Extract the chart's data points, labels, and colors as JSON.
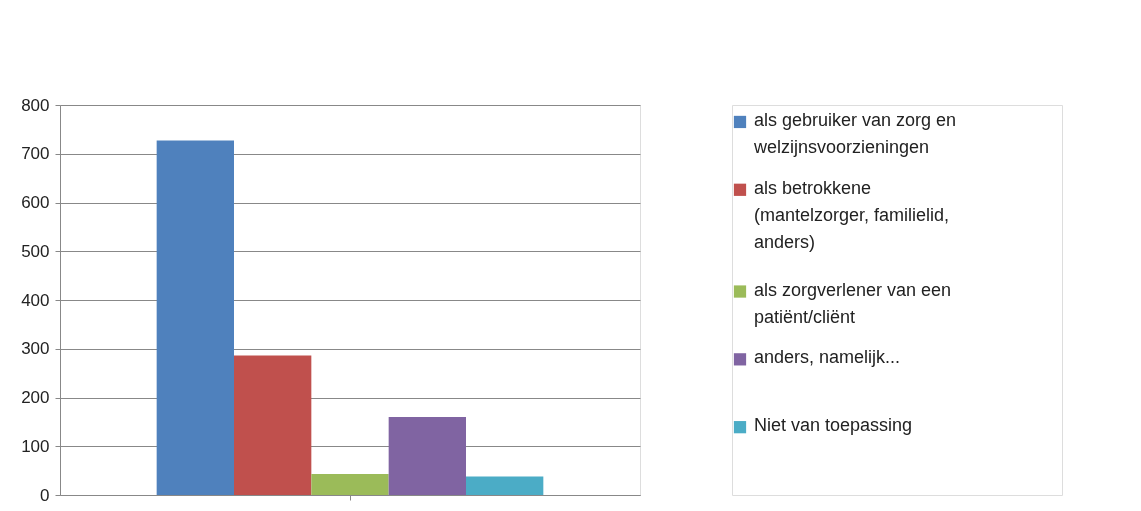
{
  "chart_data": {
    "type": "bar",
    "categories": [
      null
    ],
    "series": [
      {
        "name": "als gebruiker van zorg en welzijnsvoorzieningen",
        "color": "#4f81bd",
        "values": [
          727
        ]
      },
      {
        "name": "als betrokkene (mantelzorger, familielid, anders)",
        "color": "#c0504d",
        "values": [
          286
        ]
      },
      {
        "name": "als zorgverlener van een patiënt/cliënt",
        "color": "#9bbb59",
        "values": [
          43
        ]
      },
      {
        "name": "anders, namelijk...",
        "color": "#8064a2",
        "values": [
          160
        ]
      },
      {
        "name": "Niet van toepassing",
        "color": "#4bacc6",
        "values": [
          38
        ]
      }
    ],
    "ylim": [
      0,
      800
    ],
    "yticks": [
      0,
      100,
      200,
      300,
      400,
      500,
      600,
      700,
      800
    ],
    "grid": "y",
    "legend": "right"
  }
}
